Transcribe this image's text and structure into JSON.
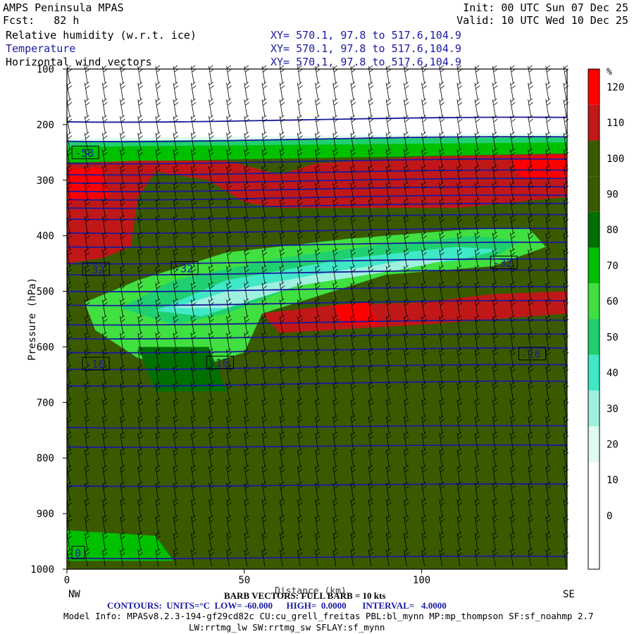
{
  "header": {
    "model": "AMPS Peninsula MPAS",
    "fcst": "Fcst:   82 h",
    "init": "Init: 00 UTC Sun 07 Dec 25",
    "valid": "Valid: 10 UTC Wed 10 Dec 25",
    "fields": [
      {
        "name": "Relative humidity (w.r.t. ice)",
        "xy": "XY= 570.1, 97.8 to 517.6,104.9"
      },
      {
        "name": "Temperature",
        "xy": "XY= 570.1, 97.8 to 517.6,104.9"
      },
      {
        "name": "Horizontal wind vectors",
        "xy": "XY= 570.1, 97.8 to 517.6,104.9"
      }
    ]
  },
  "footer": {
    "barb": "BARB VECTORS: FULL BARB = 10 kts",
    "xlabel": "Distance (km)",
    "contours": "CONTOURS:  UNITS=°C  LOW= -60.000      HIGH=  0.0000       INTERVAL=   4.0000",
    "model_info_1": "Model Info: MPASv8.2.3-194-gf29cd82c CU:cu_grell_freitas PBL:bl_mynn MP:mp_thompson SF:sf_noahmp 2.7",
    "model_info_2": "LW:rrtmg_lw SW:rrtmg_sw SFLAY:sf_mynn"
  },
  "colors": {
    "rh_bands": [
      "#ffffff",
      "#ffffff",
      "#ffffff",
      "#e0fcf0",
      "#a0f0e0",
      "#40e8c8",
      "#20d070",
      "#40e040",
      "#00c000",
      "#007000",
      "#3a5a00",
      "#c01818",
      "#ff0000"
    ],
    "contour": "#1a1aa0"
  },
  "chart_data": {
    "type": "heatmap",
    "title": "Relative humidity (w.r.t. ice)",
    "x_axis": {
      "label": "Distance (km)",
      "range": [
        0,
        141
      ],
      "ticks": [
        0,
        50,
        100
      ],
      "left_end_label": "NW",
      "right_end_label": "SE"
    },
    "y_axis": {
      "label": "Pressure (hPa)",
      "range": [
        100,
        1000
      ],
      "inverted": true,
      "ticks": [
        100,
        200,
        300,
        400,
        500,
        600,
        700,
        800,
        900,
        1000
      ]
    },
    "colorbar": {
      "units": "%",
      "levels": [
        0,
        10,
        20,
        30,
        40,
        50,
        60,
        70,
        80,
        90,
        100,
        110,
        120
      ]
    },
    "temperature_contour_labels": [
      {
        "label": "-58",
        "x": 2,
        "p": 250
      },
      {
        "label": "-32",
        "x": 5,
        "p": 460
      },
      {
        "label": "-32",
        "x": 30,
        "p": 458
      },
      {
        "label": "-32",
        "x": 120,
        "p": 448
      },
      {
        "label": "-16",
        "x": 5,
        "p": 630
      },
      {
        "label": "-16",
        "x": 40,
        "p": 628
      },
      {
        "label": "-16",
        "x": 128,
        "p": 612
      },
      {
        "label": "0",
        "x": 2,
        "p": 970
      }
    ],
    "rh_features": [
      {
        "desc": "dry layer",
        "p_range": [
          100,
          230
        ],
        "rh": "<20"
      },
      {
        "desc": "saturated (supersat) band",
        "x_range": [
          0,
          140
        ],
        "p_range": [
          250,
          380
        ],
        "rh": ">110"
      },
      {
        "desc": "dry slot",
        "x_range": [
          10,
          140
        ],
        "p_range": [
          380,
          560
        ],
        "rh": "30-60"
      },
      {
        "desc": "moist lower troposphere",
        "p_range": [
          560,
          1000
        ],
        "rh": "100-110"
      }
    ]
  }
}
